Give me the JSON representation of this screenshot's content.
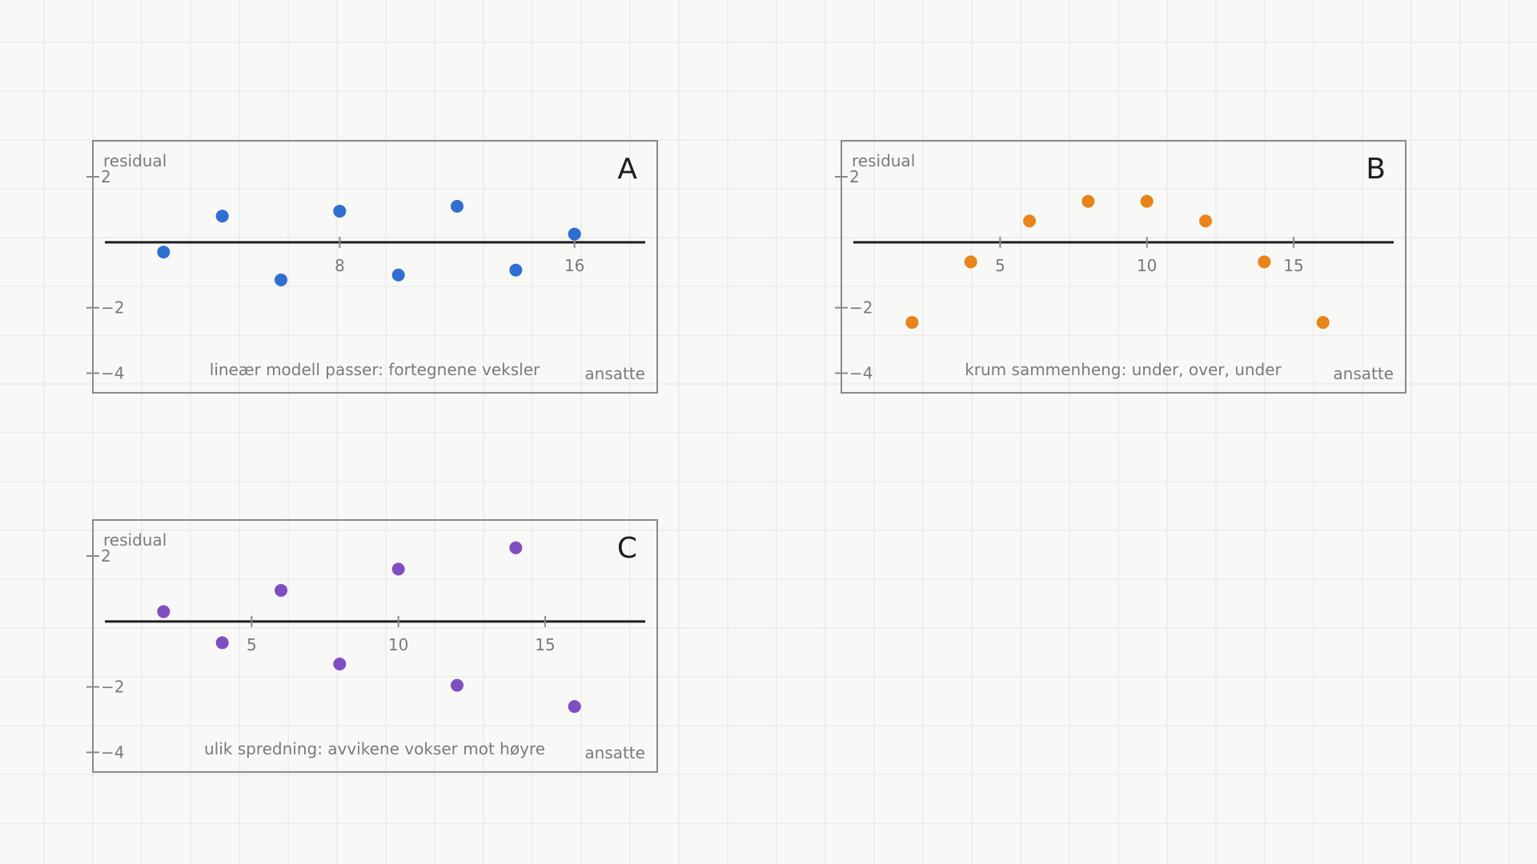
{
  "colors": {
    "background": "#f8f8f6",
    "grid": "#e4e4e2",
    "frame": "#8a8a8a",
    "axis": "#1e1e1e",
    "label": "#7a7a7a",
    "panel_letter": "#1e1e1e"
  },
  "chart_data": [
    {
      "type": "scatter",
      "panel": "A",
      "ylabel": "residual",
      "xlabel": "ansatte",
      "caption": "lineær modell passer: fortegnene veksler",
      "xlim": [
        0,
        18
      ],
      "ylim": [
        -4.6,
        3.1
      ],
      "xticks": [
        8,
        16
      ],
      "xtick_labels": [
        "8",
        "16"
      ],
      "yticks": [
        2,
        -2,
        -4
      ],
      "ytick_labels": [
        "2",
        "−2",
        "−4"
      ],
      "color": "#2f6fd1",
      "grid": true,
      "x": [
        2,
        4,
        6,
        8,
        10,
        12,
        14,
        16
      ],
      "y": [
        -0.3,
        0.8,
        -1.15,
        0.95,
        -1.0,
        1.1,
        -0.85,
        0.25
      ]
    },
    {
      "type": "scatter",
      "panel": "B",
      "ylabel": "residual",
      "xlabel": "ansatte",
      "caption": "krum sammenheng: under, over, under",
      "xlim": [
        0,
        18
      ],
      "ylim": [
        -4.6,
        3.1
      ],
      "xticks": [
        5,
        10,
        15
      ],
      "xtick_labels": [
        "5",
        "10",
        "15"
      ],
      "yticks": [
        2,
        -2,
        -4
      ],
      "ytick_labels": [
        "2",
        "−2",
        "−4"
      ],
      "color": "#e8841a",
      "grid": true,
      "x": [
        2,
        4,
        6,
        8,
        10,
        12,
        14,
        16
      ],
      "y": [
        -2.45,
        -0.6,
        0.65,
        1.25,
        1.25,
        0.65,
        -0.6,
        -2.45
      ]
    },
    {
      "type": "scatter",
      "panel": "C",
      "ylabel": "residual",
      "xlabel": "ansatte",
      "caption": "ulik spredning: avvikene vokser mot høyre",
      "xlim": [
        0,
        18
      ],
      "ylim": [
        -4.6,
        3.1
      ],
      "xticks": [
        5,
        10,
        15
      ],
      "xtick_labels": [
        "5",
        "10",
        "15"
      ],
      "yticks": [
        2,
        -2,
        -4
      ],
      "ytick_labels": [
        "2",
        "−2",
        "−4"
      ],
      "color": "#7e4fc2",
      "grid": true,
      "x": [
        2,
        4,
        6,
        8,
        10,
        12,
        14,
        16
      ],
      "y": [
        0.3,
        -0.65,
        0.95,
        -1.3,
        1.6,
        -1.95,
        2.25,
        -2.6
      ]
    }
  ]
}
